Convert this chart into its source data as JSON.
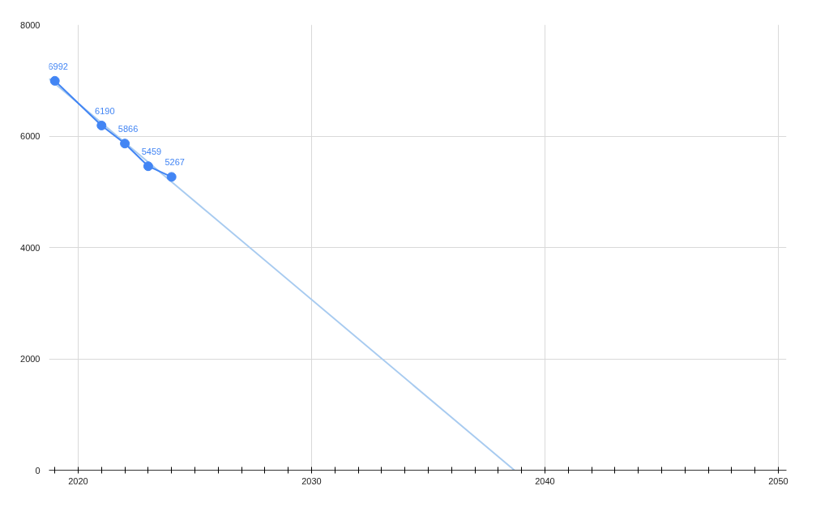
{
  "chart_data": {
    "type": "line",
    "x": [
      2019,
      2021,
      2022,
      2023,
      2024
    ],
    "series": [
      {
        "color": "#4285f4",
        "values": [
          6992,
          6190,
          5866,
          5459,
          5267
        ],
        "value_labels": [
          "6992",
          "6190",
          "5866",
          "5459",
          "5267"
        ],
        "marker": "circle"
      },
      {
        "color": "#a8cbf0",
        "x": [
          2018.75,
          2038.69
        ],
        "values": [
          7030,
          0
        ],
        "marker": "none"
      }
    ],
    "xlim": [
      2018.75,
      2050.35
    ],
    "ylim": [
      0,
      8000
    ],
    "yticks": [
      0,
      2000,
      4000,
      6000,
      8000
    ],
    "xticks": [
      {
        "value": 2019,
        "label": null
      },
      2020,
      {
        "value": 2021,
        "label": null
      },
      {
        "value": 2022,
        "label": null
      },
      {
        "value": 2023,
        "label": null
      },
      {
        "value": 2024,
        "label": null
      },
      {
        "value": 2025,
        "label": null
      },
      {
        "value": 2026,
        "label": null
      },
      {
        "value": 2027,
        "label": null
      },
      {
        "value": 2028,
        "label": null
      },
      {
        "value": 2029,
        "label": null
      },
      2030,
      {
        "value": 2031,
        "label": null
      },
      {
        "value": 2032,
        "label": null
      },
      {
        "value": 2033,
        "label": null
      },
      {
        "value": 2034,
        "label": null
      },
      {
        "value": 2035,
        "label": null
      },
      {
        "value": 2036,
        "label": null
      },
      {
        "value": 2037,
        "label": null
      },
      {
        "value": 2038,
        "label": null
      },
      {
        "value": 2039,
        "label": null
      },
      2040,
      {
        "value": 2041,
        "label": null
      },
      {
        "value": 2042,
        "label": null
      },
      {
        "value": 2043,
        "label": null
      },
      {
        "value": 2044,
        "label": null
      },
      {
        "value": 2045,
        "label": null
      },
      {
        "value": 2046,
        "label": null
      },
      {
        "value": 2047,
        "label": null
      },
      {
        "value": 2048,
        "label": null
      },
      {
        "value": 2049,
        "label": null
      },
      2050
    ],
    "grid": true
  }
}
